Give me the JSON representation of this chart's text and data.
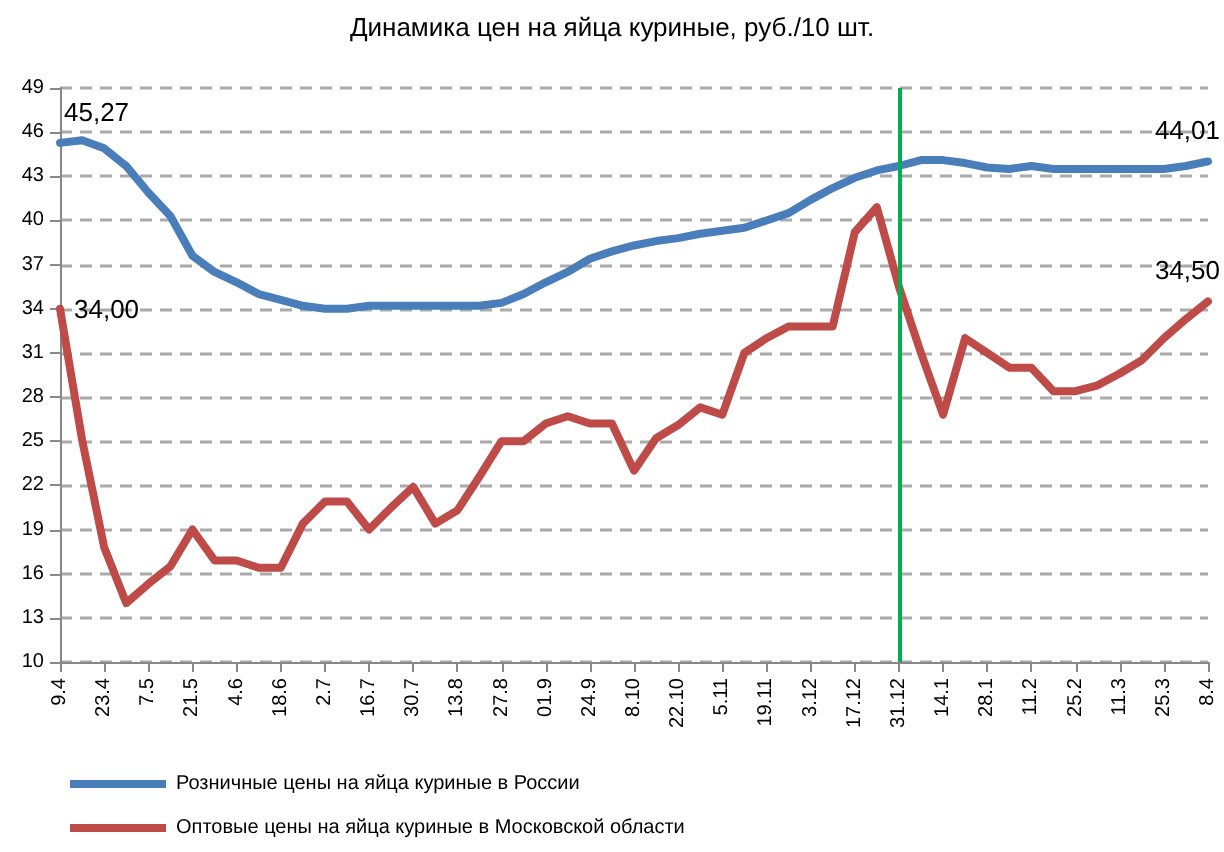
{
  "chart_data": {
    "type": "line",
    "title": "Динамика цен на яйца куриные, руб./10 шт.",
    "categories": [
      "9.4",
      null,
      "23.4",
      null,
      "7.5",
      null,
      "21.5",
      null,
      "4.6",
      null,
      "18.6",
      null,
      "2.7",
      null,
      "16.7",
      null,
      "30.7",
      null,
      "13.8",
      null,
      "27.8",
      null,
      "01.9",
      null,
      "24.9",
      null,
      "8.10",
      null,
      "22.10",
      null,
      "5.11",
      null,
      "19.11",
      null,
      "3.12",
      null,
      "17.12",
      null,
      "31.12",
      null,
      "14.1",
      null,
      "28.1",
      null,
      "11.2",
      null,
      "25.2",
      null,
      "11.3",
      null,
      "25.3",
      null,
      "8.4"
    ],
    "series": [
      {
        "name": "Розничные цены на яйца куриные в России",
        "color": "#4a7ebb",
        "values": [
          45.27,
          45.45,
          44.9,
          43.7,
          41.9,
          40.3,
          37.6,
          36.5,
          35.8,
          35.0,
          34.6,
          34.2,
          34.0,
          34.0,
          34.2,
          34.2,
          34.2,
          34.2,
          34.2,
          34.2,
          34.4,
          35.0,
          35.8,
          36.5,
          37.4,
          37.9,
          38.3,
          38.6,
          38.8,
          39.1,
          39.3,
          39.5,
          40.0,
          40.5,
          41.4,
          42.2,
          42.9,
          43.4,
          43.7,
          44.1,
          44.1,
          43.9,
          43.6,
          43.5,
          43.7,
          43.5,
          43.5,
          43.5,
          43.5,
          43.5,
          43.5,
          43.7,
          44.01
        ],
        "value_labels": [
          "45,27",
          null,
          null,
          null,
          null,
          null,
          null,
          null,
          null,
          null,
          null,
          null,
          null,
          null,
          null,
          null,
          null,
          null,
          null,
          null,
          null,
          null,
          null,
          null,
          null,
          null,
          null,
          null,
          null,
          null,
          null,
          null,
          null,
          null,
          null,
          null,
          null,
          null,
          null,
          null,
          null,
          null,
          null,
          null,
          null,
          null,
          null,
          null,
          null,
          null,
          null,
          null,
          "44,01"
        ]
      },
      {
        "name": "Оптовые цены на яйца куриные в Московской области",
        "color": "#be4b48",
        "values": [
          34.0,
          25.1,
          17.8,
          14.0,
          15.3,
          16.5,
          19.0,
          16.9,
          16.9,
          16.4,
          16.4,
          19.4,
          20.9,
          20.9,
          19.0,
          20.5,
          21.9,
          19.4,
          20.3,
          22.6,
          25.0,
          25.0,
          26.2,
          26.7,
          26.2,
          26.2,
          23.0,
          25.2,
          26.1,
          27.3,
          26.8,
          31.0,
          32.0,
          32.8,
          32.8,
          32.8,
          39.2,
          40.9,
          35.5,
          31.0,
          26.8,
          32.0,
          31.0,
          30.0,
          30.0,
          28.4,
          28.4,
          28.8,
          29.6,
          30.5,
          32.0,
          33.3,
          34.5
        ],
        "value_labels": [
          "34,00",
          null,
          null,
          null,
          null,
          null,
          null,
          null,
          null,
          null,
          null,
          null,
          null,
          null,
          null,
          null,
          null,
          null,
          null,
          null,
          null,
          null,
          null,
          null,
          null,
          null,
          null,
          null,
          null,
          null,
          null,
          null,
          null,
          null,
          null,
          null,
          null,
          null,
          null,
          null,
          null,
          null,
          null,
          null,
          null,
          null,
          null,
          null,
          null,
          null,
          null,
          null,
          "34,50"
        ]
      }
    ],
    "ylim": [
      10,
      49
    ],
    "yticks": [
      10,
      13,
      16,
      19,
      22,
      25,
      28,
      31,
      34,
      37,
      40,
      43,
      46,
      49
    ],
    "grid": "y",
    "legend": "bottom",
    "marker": "none",
    "line_style": "solid",
    "ref_lines": [
      {
        "axis": "x",
        "value": "31.12",
        "color": "#00b050"
      }
    ]
  }
}
